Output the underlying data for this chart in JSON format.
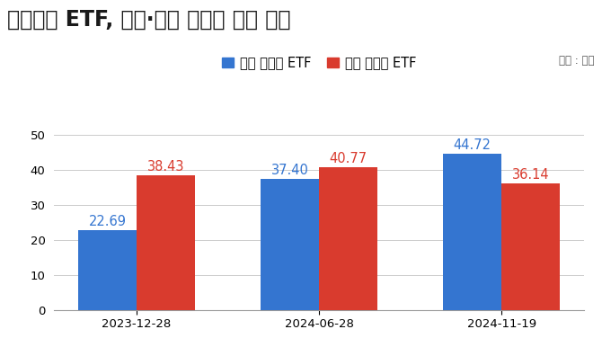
{
  "title": "주식관련 ETF, 국내·해외 순자산 총액 추이",
  "unit_label": "단위 : 조원",
  "categories": [
    "2023-12-28",
    "2024-06-28",
    "2024-11-19"
  ],
  "overseas_values": [
    22.69,
    37.4,
    44.72
  ],
  "domestic_values": [
    38.43,
    40.77,
    36.14
  ],
  "overseas_color": "#3475d0",
  "domestic_color": "#d93b2e",
  "overseas_label": "해외 주식형 ETF",
  "domestic_label": "국내 주식형 ETF",
  "ylim": [
    0,
    55
  ],
  "yticks": [
    0,
    10,
    20,
    30,
    40,
    50
  ],
  "background_color": "#ffffff",
  "bar_width": 0.32,
  "title_fontsize": 17,
  "label_fontsize": 10.5,
  "tick_fontsize": 9.5,
  "annotation_fontsize": 10.5,
  "unit_fontsize": 8.5
}
